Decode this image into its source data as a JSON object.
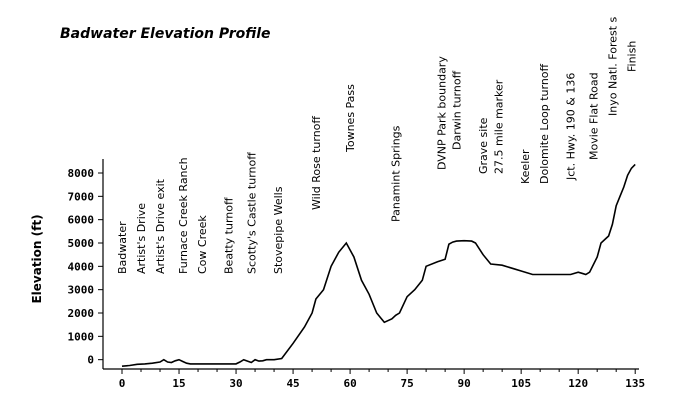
{
  "chart_data": {
    "type": "line",
    "title": "Badwater Elevation Profile",
    "xlabel": "",
    "ylabel": "Elevation (ft)",
    "xlim": [
      -5,
      136
    ],
    "ylim": [
      -400,
      8600
    ],
    "x_ticks": [
      0,
      15,
      30,
      45,
      60,
      75,
      90,
      105,
      120,
      135
    ],
    "y_ticks": [
      0,
      1000,
      2000,
      3000,
      4000,
      5000,
      6000,
      7000,
      8000
    ],
    "grid": false,
    "series": [
      {
        "x": [
          0,
          2,
          4,
          6,
          8,
          10,
          11,
          12,
          13,
          14,
          15,
          16,
          17,
          18,
          20,
          25,
          30,
          31,
          32,
          33,
          34,
          35,
          36,
          37,
          38,
          40,
          42,
          45,
          48,
          50,
          51,
          53,
          55,
          57,
          59,
          61,
          63,
          65,
          67,
          69,
          71,
          72,
          73,
          75,
          77,
          79,
          80,
          83,
          85,
          86,
          87,
          88,
          90,
          92,
          93,
          95,
          97,
          100,
          103,
          105,
          108,
          110,
          115,
          118,
          120,
          121,
          122,
          123,
          125,
          126,
          127,
          128,
          129,
          130,
          131,
          132,
          133,
          134,
          135
        ],
        "y": [
          -282,
          -250,
          -200,
          -180,
          -150,
          -100,
          0,
          -100,
          -120,
          -50,
          0,
          -80,
          -150,
          -180,
          -180,
          -180,
          -180,
          -100,
          0,
          -60,
          -120,
          0,
          -60,
          -50,
          0,
          0,
          50,
          700,
          1400,
          2000,
          2600,
          3000,
          4000,
          4600,
          5000,
          4400,
          3400,
          2800,
          2000,
          1600,
          1750,
          1900,
          2000,
          2700,
          3000,
          3400,
          4000,
          4200,
          4300,
          4950,
          5040,
          5080,
          5100,
          5080,
          5000,
          4500,
          4100,
          4050,
          3900,
          3800,
          3650,
          3650,
          3650,
          3650,
          3750,
          3700,
          3650,
          3750,
          4400,
          5000,
          5150,
          5300,
          5800,
          6600,
          7000,
          7400,
          7900,
          8200,
          8370
        ]
      }
    ],
    "annotations": [
      {
        "text": "Badwater",
        "x": 0
      },
      {
        "text": "Artist's Drive",
        "x": 5
      },
      {
        "text": "Artist's Drive exit",
        "x": 10
      },
      {
        "text": "Furnace Creek Ranch",
        "x": 16
      },
      {
        "text": "Cow Creek",
        "x": 21
      },
      {
        "text": "Beatty turnoff",
        "x": 28
      },
      {
        "text": "Scotty's Castle turnoff",
        "x": 34
      },
      {
        "text": "Stovepipe Wells",
        "x": 41
      },
      {
        "text": "Wild Rose turnoff",
        "x": 51
      },
      {
        "text": "Townes Pass",
        "x": 60
      },
      {
        "text": "Panamint Springs",
        "x": 72
      },
      {
        "text": "DVNP Park boundary",
        "x": 84
      },
      {
        "text": "Darwin turnoff",
        "x": 88
      },
      {
        "text": "Grave site",
        "x": 95
      },
      {
        "text": "27.5 mile marker",
        "x": 99
      },
      {
        "text": "Keeler",
        "x": 106
      },
      {
        "text": "Dolomite Loop turnoff",
        "x": 111
      },
      {
        "text": "Jct. Hwy. 190 & 136",
        "x": 118
      },
      {
        "text": "Movie Flat Road",
        "x": 124
      },
      {
        "text": "Inyo Natl. Forest s",
        "x": 129
      },
      {
        "text": "Finish",
        "x": 134
      }
    ]
  }
}
